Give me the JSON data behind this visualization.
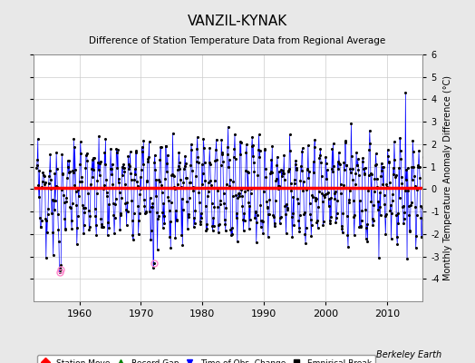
{
  "title": "VANZIL-KYNAK",
  "subtitle": "Difference of Station Temperature Data from Regional Average",
  "ylabel": "Monthly Temperature Anomaly Difference (°C)",
  "xlabel_ticks": [
    1960,
    1970,
    1980,
    1990,
    2000,
    2010
  ],
  "ylim": [
    -5,
    6
  ],
  "yticks": [
    -4,
    -3,
    -2,
    -1,
    0,
    1,
    2,
    3,
    4,
    5,
    6
  ],
  "xlim_start": 1952.5,
  "xlim_end": 2015.8,
  "bias_value": 0.05,
  "line_color": "#0000FF",
  "bias_color": "#FF0000",
  "qc_color": "#FF88CC",
  "background_color": "#E8E8E8",
  "plot_bg_color": "#FFFFFF",
  "grid_color": "#CCCCCC",
  "watermark": "Berkeley Earth",
  "seed": 42,
  "n_months": 756,
  "start_year": 1953.0
}
